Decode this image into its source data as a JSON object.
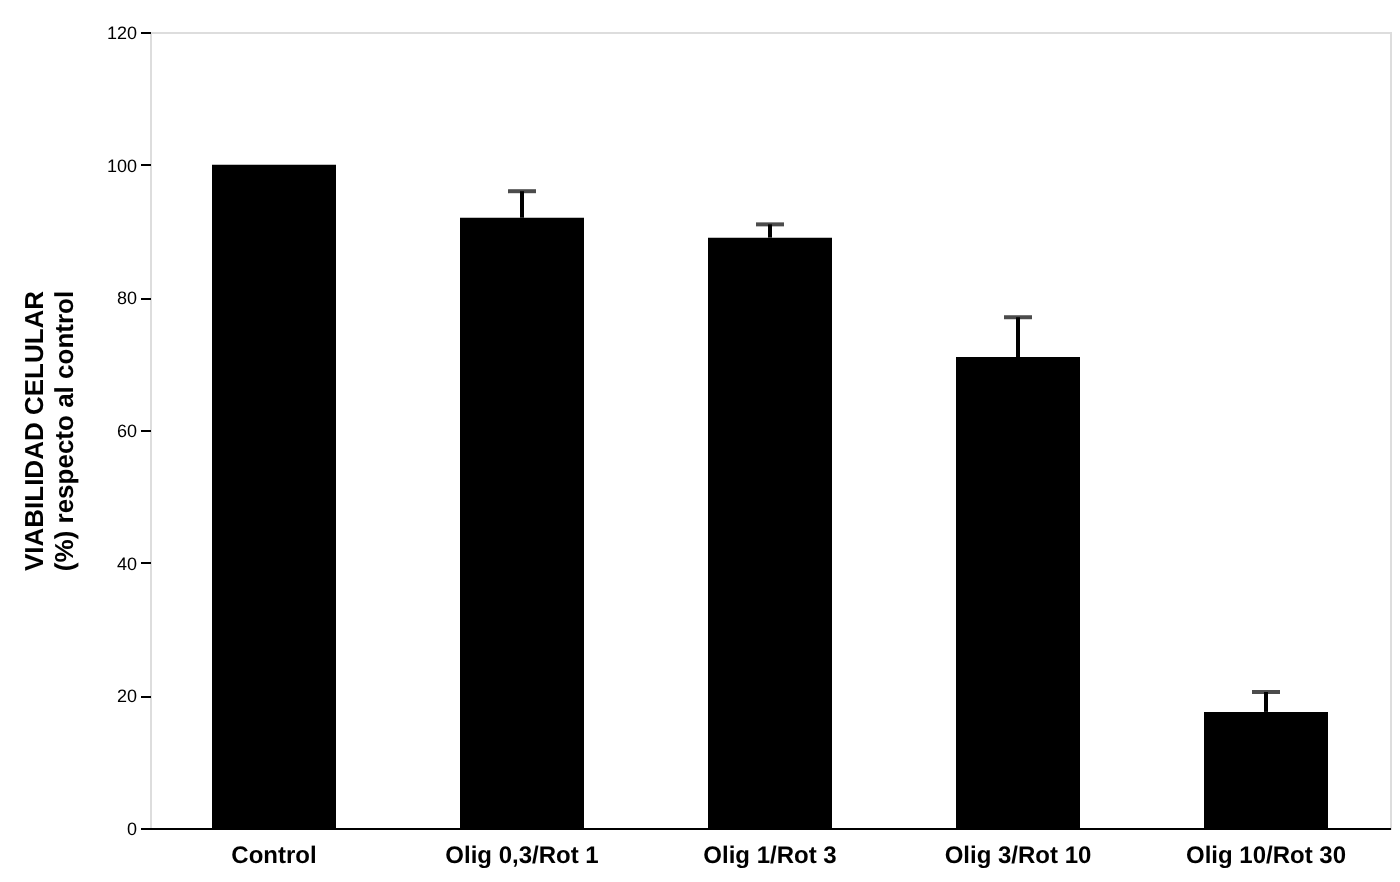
{
  "chart_data": {
    "type": "bar",
    "ylabel": "VIABILIDAD CELULAR\n(%) respecto al control",
    "categories": [
      "Control",
      "Olig 0,3/Rot 1",
      "Olig 1/Rot 3",
      "Olig 3/Rot 10",
      "Olig 10/Rot 30"
    ],
    "values": [
      100,
      92,
      89,
      71,
      17.5
    ],
    "errors": [
      null,
      [
        92,
        96
      ],
      [
        89,
        91
      ],
      [
        71,
        77
      ],
      [
        17.5,
        20.5
      ]
    ],
    "color": "#000000",
    "ylim": [
      0,
      120
    ],
    "yticks": [
      0,
      20,
      40,
      60,
      80,
      100,
      120
    ],
    "grid": false
  }
}
